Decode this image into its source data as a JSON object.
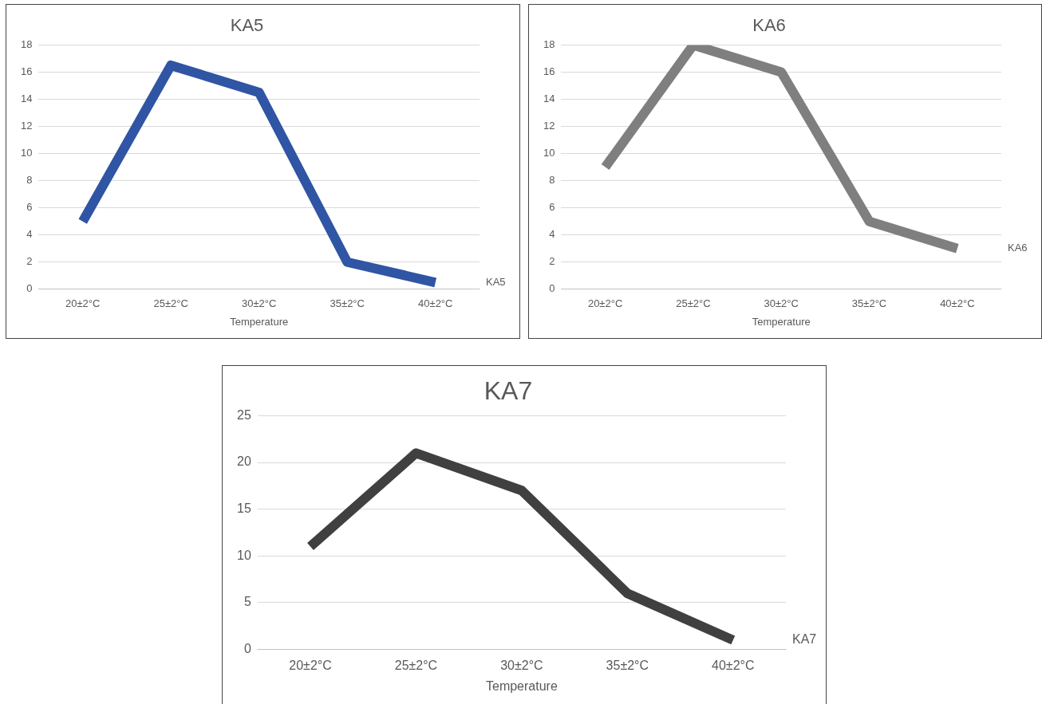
{
  "chart_data": [
    {
      "type": "line",
      "title": "KA5",
      "xlabel": "Temperature",
      "categories": [
        "20±2°C",
        "25±2°C",
        "30±2°C",
        "35±2°C",
        "40±2°C"
      ],
      "series": [
        {
          "name": "KA5",
          "color": "#2f55a4",
          "values": [
            5,
            16.5,
            14.5,
            2,
            0.5
          ]
        }
      ],
      "ylim": [
        0,
        18
      ],
      "yticks": [
        0,
        2,
        4,
        6,
        8,
        10,
        12,
        14,
        16,
        18
      ],
      "grid": "y"
    },
    {
      "type": "line",
      "title": "KA6",
      "xlabel": "Temperature",
      "categories": [
        "20±2°C",
        "25±2°C",
        "30±2°C",
        "35±2°C",
        "40±2°C"
      ],
      "series": [
        {
          "name": "KA6",
          "color": "#7f7f7f",
          "values": [
            9,
            18,
            16,
            5,
            3
          ]
        }
      ],
      "ylim": [
        0,
        18
      ],
      "yticks": [
        0,
        2,
        4,
        6,
        8,
        10,
        12,
        14,
        16,
        18
      ],
      "grid": "y"
    },
    {
      "type": "line",
      "title": "KA7",
      "xlabel": "Temperature",
      "categories": [
        "20±2°C",
        "25±2°C",
        "30±2°C",
        "35±2°C",
        "40±2°C"
      ],
      "series": [
        {
          "name": "KA7",
          "color": "#404040",
          "values": [
            11,
            21,
            17,
            6,
            1
          ]
        }
      ],
      "ylim": [
        0,
        25
      ],
      "yticks": [
        0,
        5,
        10,
        15,
        20,
        25
      ],
      "grid": "y"
    }
  ]
}
